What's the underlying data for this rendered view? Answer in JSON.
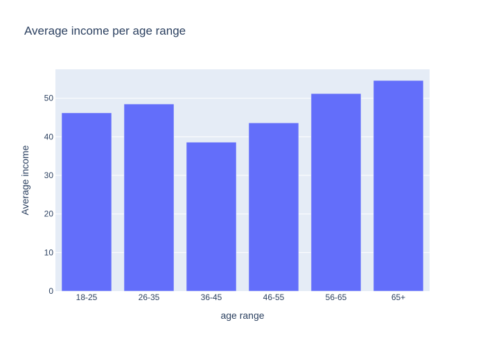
{
  "chart_data": {
    "type": "bar",
    "title": "Average income per age range",
    "xlabel": "age range",
    "ylabel": "Average income",
    "categories": [
      "18-25",
      "26-35",
      "36-45",
      "46-55",
      "56-65",
      "65+"
    ],
    "values": [
      46.2,
      48.5,
      38.6,
      43.6,
      51.2,
      54.6
    ],
    "yticks": [
      0,
      10,
      20,
      30,
      40,
      50
    ],
    "ylim": [
      0,
      57.5
    ],
    "grid": true,
    "colors": {
      "bar": "#636efa",
      "plot_background": "#e5ecf6",
      "grid": "#ffffff",
      "text": "#2a3f5f",
      "tick_text": "#2a3f5f"
    }
  }
}
